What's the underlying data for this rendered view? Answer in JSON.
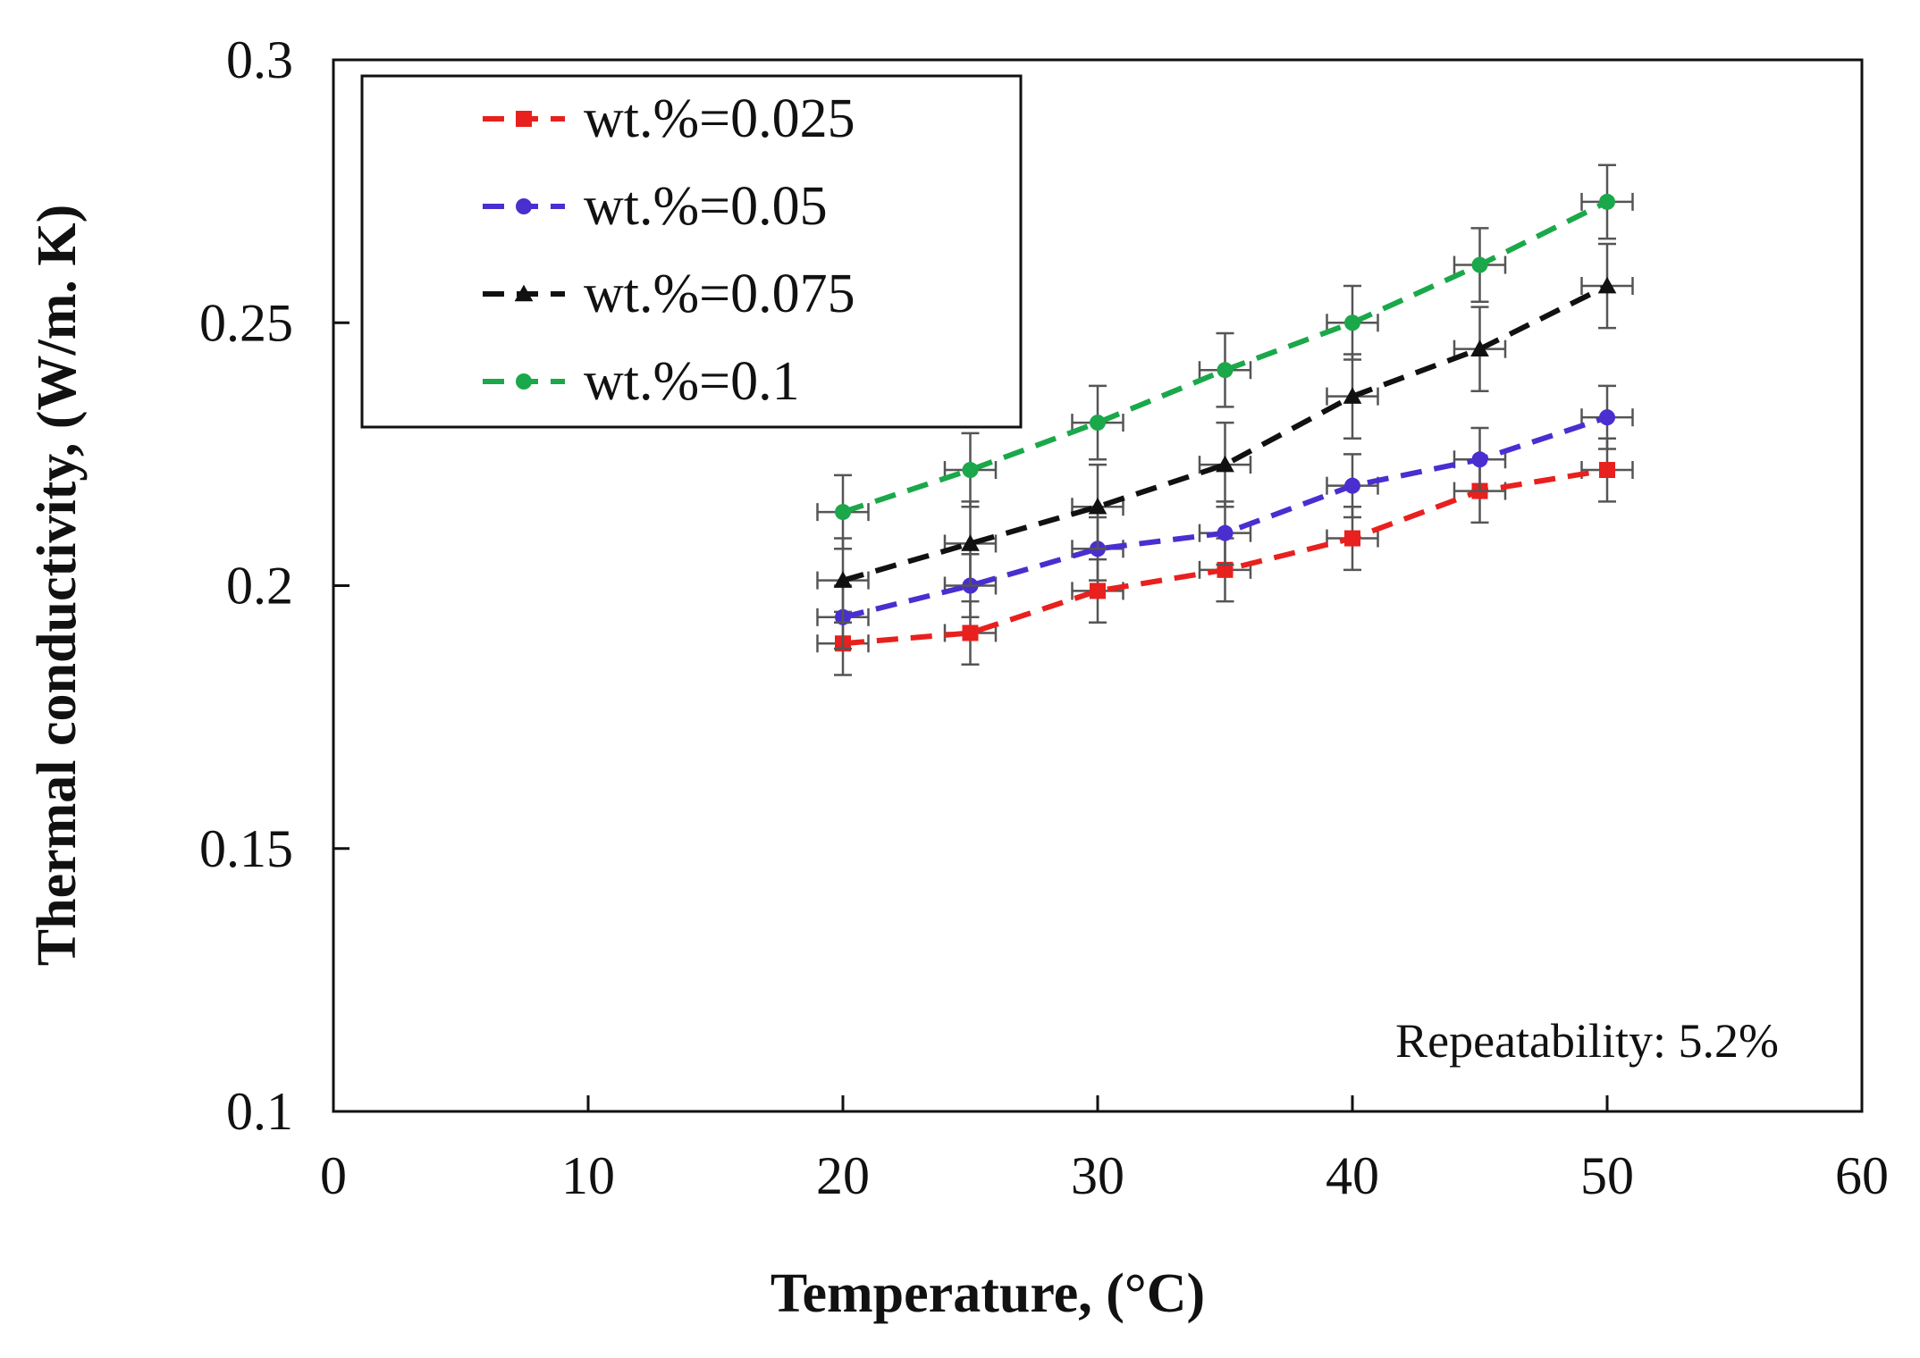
{
  "chart_data": {
    "type": "line",
    "title": "",
    "xlabel": "Temperature, (°C)",
    "ylabel": "Thermal conductivity, (W/m. K)",
    "xlim": [
      0,
      60
    ],
    "ylim": [
      0.1,
      0.3
    ],
    "xticks": [
      "0",
      "10",
      "20",
      "30",
      "40",
      "50",
      "60"
    ],
    "yticks": [
      "0.1",
      "0.15",
      "0.2",
      "0.25",
      "0.3"
    ],
    "xtick_values": [
      0,
      10,
      20,
      30,
      40,
      50,
      60
    ],
    "ytick_values": [
      0.1,
      0.15,
      0.2,
      0.25,
      0.3
    ],
    "grid": false,
    "legend_position": "top-left",
    "x": [
      20,
      25,
      30,
      35,
      40,
      45,
      50
    ],
    "x_error": 1.0,
    "series": [
      {
        "name": "wt.%=0.025",
        "marker": "square",
        "color": "#e8201e",
        "values": [
          0.189,
          0.191,
          0.199,
          0.203,
          0.209,
          0.218,
          0.222
        ],
        "y_error": 0.006
      },
      {
        "name": "wt.%=0.05",
        "marker": "circle",
        "color": "#4a2ed0",
        "values": [
          0.194,
          0.2,
          0.207,
          0.21,
          0.219,
          0.224,
          0.232
        ],
        "y_error": 0.006
      },
      {
        "name": "wt.%=0.075",
        "marker": "triangle",
        "color": "#111111",
        "values": [
          0.201,
          0.208,
          0.215,
          0.223,
          0.236,
          0.245,
          0.257
        ],
        "y_error": 0.008
      },
      {
        "name": "wt.%=0.1",
        "marker": "circle",
        "color": "#1aa84a",
        "values": [
          0.214,
          0.222,
          0.231,
          0.241,
          0.25,
          0.261,
          0.273
        ],
        "y_error": 0.007
      }
    ],
    "annotation": "Repeatability: 5.2%"
  }
}
